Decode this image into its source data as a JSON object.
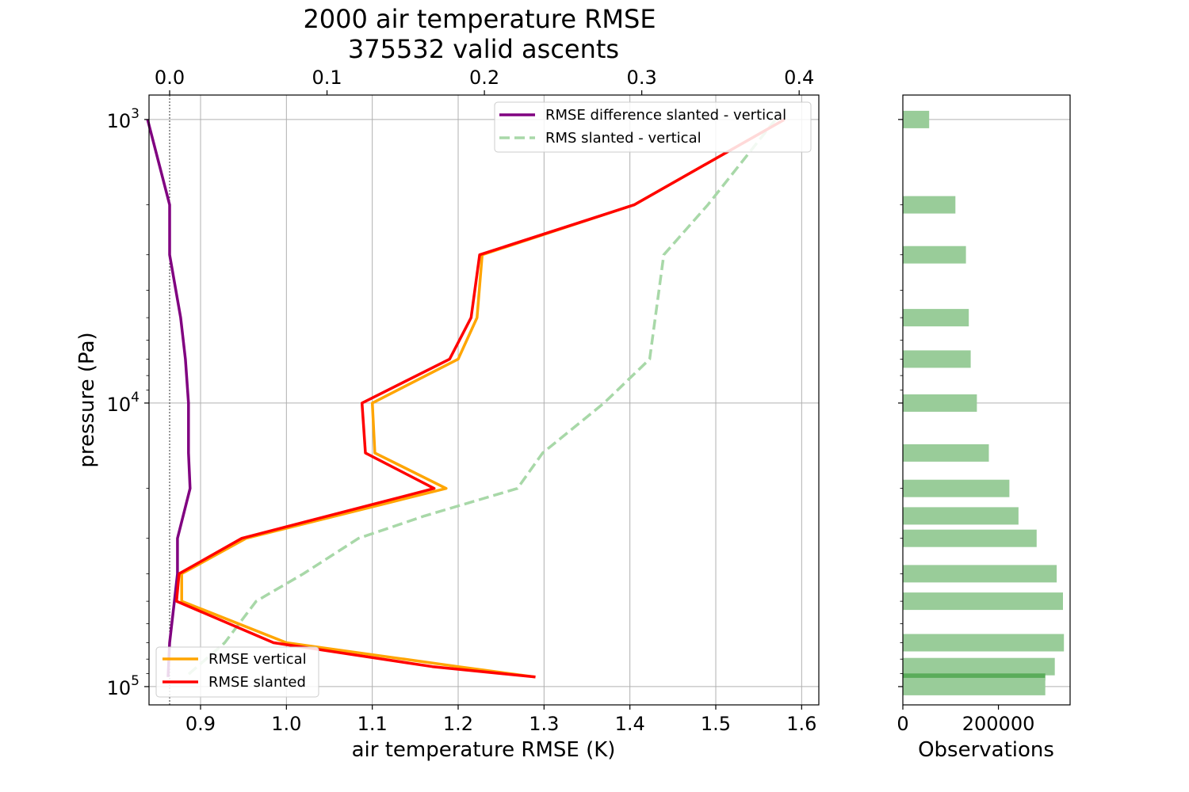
{
  "chart_data": {
    "type": "line",
    "title": "2000 air temperature RMSE",
    "subtitle": "375532 valid ascents",
    "xlabel": "air temperature RMSE (K)",
    "ylabel": "pressure (Pa)",
    "y_scale": "log",
    "y_inverted": true,
    "ylim": [
      116000,
      820
    ],
    "xlim": [
      0.84,
      1.62
    ],
    "x_ticks": [
      "0.9",
      "1.0",
      "1.1",
      "1.2",
      "1.3",
      "1.4",
      "1.5",
      "1.6"
    ],
    "x_tick_values": [
      0.9,
      1.0,
      1.1,
      1.2,
      1.3,
      1.4,
      1.5,
      1.6
    ],
    "x2lim": [
      -0.0131,
      0.4125
    ],
    "x2_ticks": [
      "0.0",
      "0.1",
      "0.2",
      "0.3",
      "0.4"
    ],
    "x2_tick_values": [
      0.0,
      0.1,
      0.2,
      0.3,
      0.4
    ],
    "y_ticks": [
      {
        "base": "10",
        "exp": "3",
        "value": 1000
      },
      {
        "base": "10",
        "exp": "4",
        "value": 10000
      },
      {
        "base": "10",
        "exp": "5",
        "value": 100000
      }
    ],
    "grid": true,
    "legend_lower_left": [
      "RMSE vertical",
      "RMSE slanted"
    ],
    "legend_upper_right": [
      "RMSE difference slanted - vertical",
      "RMS slanted - vertical"
    ],
    "series": [
      {
        "name": "RMSE vertical",
        "axis": "bottom",
        "color": "#ffa500",
        "style": "solid",
        "points": [
          [
            1.58,
            1000
          ],
          [
            1.405,
            2000
          ],
          [
            1.228,
            3000
          ],
          [
            1.222,
            5000
          ],
          [
            1.2,
            7000
          ],
          [
            1.1,
            10000
          ],
          [
            1.103,
            15000
          ],
          [
            1.186,
            20000
          ],
          [
            0.953,
            30000
          ],
          [
            0.878,
            40000
          ],
          [
            0.878,
            50000
          ],
          [
            1.0,
            70000
          ],
          [
            1.2,
            85000
          ],
          [
            1.29,
            92500
          ]
        ]
      },
      {
        "name": "RMSE slanted",
        "axis": "bottom",
        "color": "#ff0000",
        "style": "solid",
        "points": [
          [
            1.58,
            1000
          ],
          [
            1.405,
            2000
          ],
          [
            1.225,
            3000
          ],
          [
            1.215,
            5000
          ],
          [
            1.19,
            7000
          ],
          [
            1.088,
            10000
          ],
          [
            1.092,
            15000
          ],
          [
            1.172,
            20000
          ],
          [
            0.948,
            30000
          ],
          [
            0.875,
            40000
          ],
          [
            0.872,
            50000
          ],
          [
            0.985,
            70000
          ],
          [
            1.17,
            85000
          ],
          [
            1.29,
            92500
          ]
        ]
      },
      {
        "name": "RMSE difference slanted - vertical",
        "axis": "top",
        "color": "#800080",
        "style": "solid",
        "points": [
          [
            -0.014,
            1000
          ],
          [
            0.0,
            2000
          ],
          [
            0.0,
            3000
          ],
          [
            0.007,
            5000
          ],
          [
            0.01,
            7000
          ],
          [
            0.012,
            10000
          ],
          [
            0.012,
            15000
          ],
          [
            0.013,
            20000
          ],
          [
            0.005,
            30000
          ],
          [
            0.005,
            40000
          ],
          [
            0.003,
            50000
          ],
          [
            0.0,
            70000
          ],
          [
            -0.001,
            92500
          ]
        ]
      },
      {
        "name": "RMS slanted - vertical",
        "axis": "top",
        "color": "#a8d8a8",
        "style": "dashed",
        "points": [
          [
            0.385,
            1000
          ],
          [
            0.342,
            2000
          ],
          [
            0.314,
            3000
          ],
          [
            0.305,
            7000
          ],
          [
            0.276,
            10000
          ],
          [
            0.237,
            15000
          ],
          [
            0.221,
            20000
          ],
          [
            0.162,
            25000
          ],
          [
            0.12,
            30000
          ],
          [
            0.085,
            40000
          ],
          [
            0.055,
            50000
          ],
          [
            0.035,
            70000
          ],
          [
            0.01,
            92500
          ]
        ]
      }
    ],
    "observations": {
      "xlabel": "Observations",
      "x_ticks": [
        "0",
        "200000"
      ],
      "x_tick_values": [
        0,
        200000
      ],
      "xlim": [
        0,
        350000
      ],
      "bar_color": "#99cc99",
      "highlight_color": "#5aac5a",
      "bars": [
        {
          "pressure": 1000,
          "count": 55000
        },
        {
          "pressure": 2000,
          "count": 110000
        },
        {
          "pressure": 3000,
          "count": 132000
        },
        {
          "pressure": 5000,
          "count": 138000
        },
        {
          "pressure": 7000,
          "count": 142000
        },
        {
          "pressure": 10000,
          "count": 155000
        },
        {
          "pressure": 15000,
          "count": 180000
        },
        {
          "pressure": 20000,
          "count": 223000
        },
        {
          "pressure": 25000,
          "count": 242000
        },
        {
          "pressure": 30000,
          "count": 280000
        },
        {
          "pressure": 40000,
          "count": 322000
        },
        {
          "pressure": 50000,
          "count": 335000
        },
        {
          "pressure": 70000,
          "count": 337000
        },
        {
          "pressure": 85000,
          "count": 318000
        },
        {
          "pressure": 92500,
          "count": 298000,
          "highlight": true
        },
        {
          "pressure": 100000,
          "count": 298000
        }
      ]
    }
  }
}
